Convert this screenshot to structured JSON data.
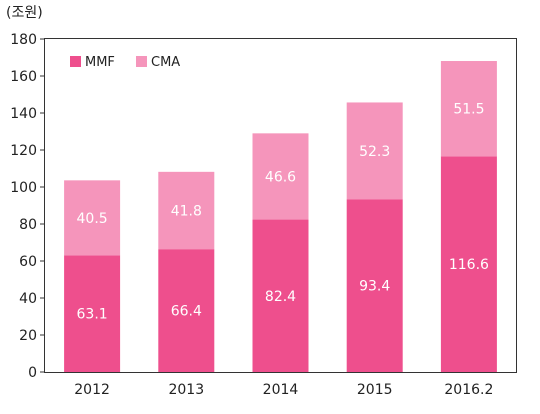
{
  "chart_data": {
    "type": "bar",
    "stacked": true,
    "unit_label": "(조원)",
    "categories": [
      "2012",
      "2013",
      "2014",
      "2015",
      "2016.2"
    ],
    "series": [
      {
        "name": "MMF",
        "values": [
          63.1,
          66.4,
          82.4,
          93.4,
          116.6
        ],
        "labels": [
          "63.1",
          "66.4",
          "82.4",
          "93.4",
          "116.6"
        ],
        "color": "#ee4f8d"
      },
      {
        "name": "CMA",
        "values": [
          40.5,
          41.8,
          46.6,
          52.3,
          51.5
        ],
        "labels": [
          "40.5",
          "41.8",
          "46.6",
          "52.3",
          "51.5"
        ],
        "color": "#f595bb"
      }
    ],
    "ylim": [
      0,
      180
    ],
    "yticks": [
      "0",
      "20",
      "40",
      "60",
      "80",
      "100",
      "120",
      "140",
      "160",
      "180"
    ],
    "legend": "top-left",
    "grid": false
  }
}
